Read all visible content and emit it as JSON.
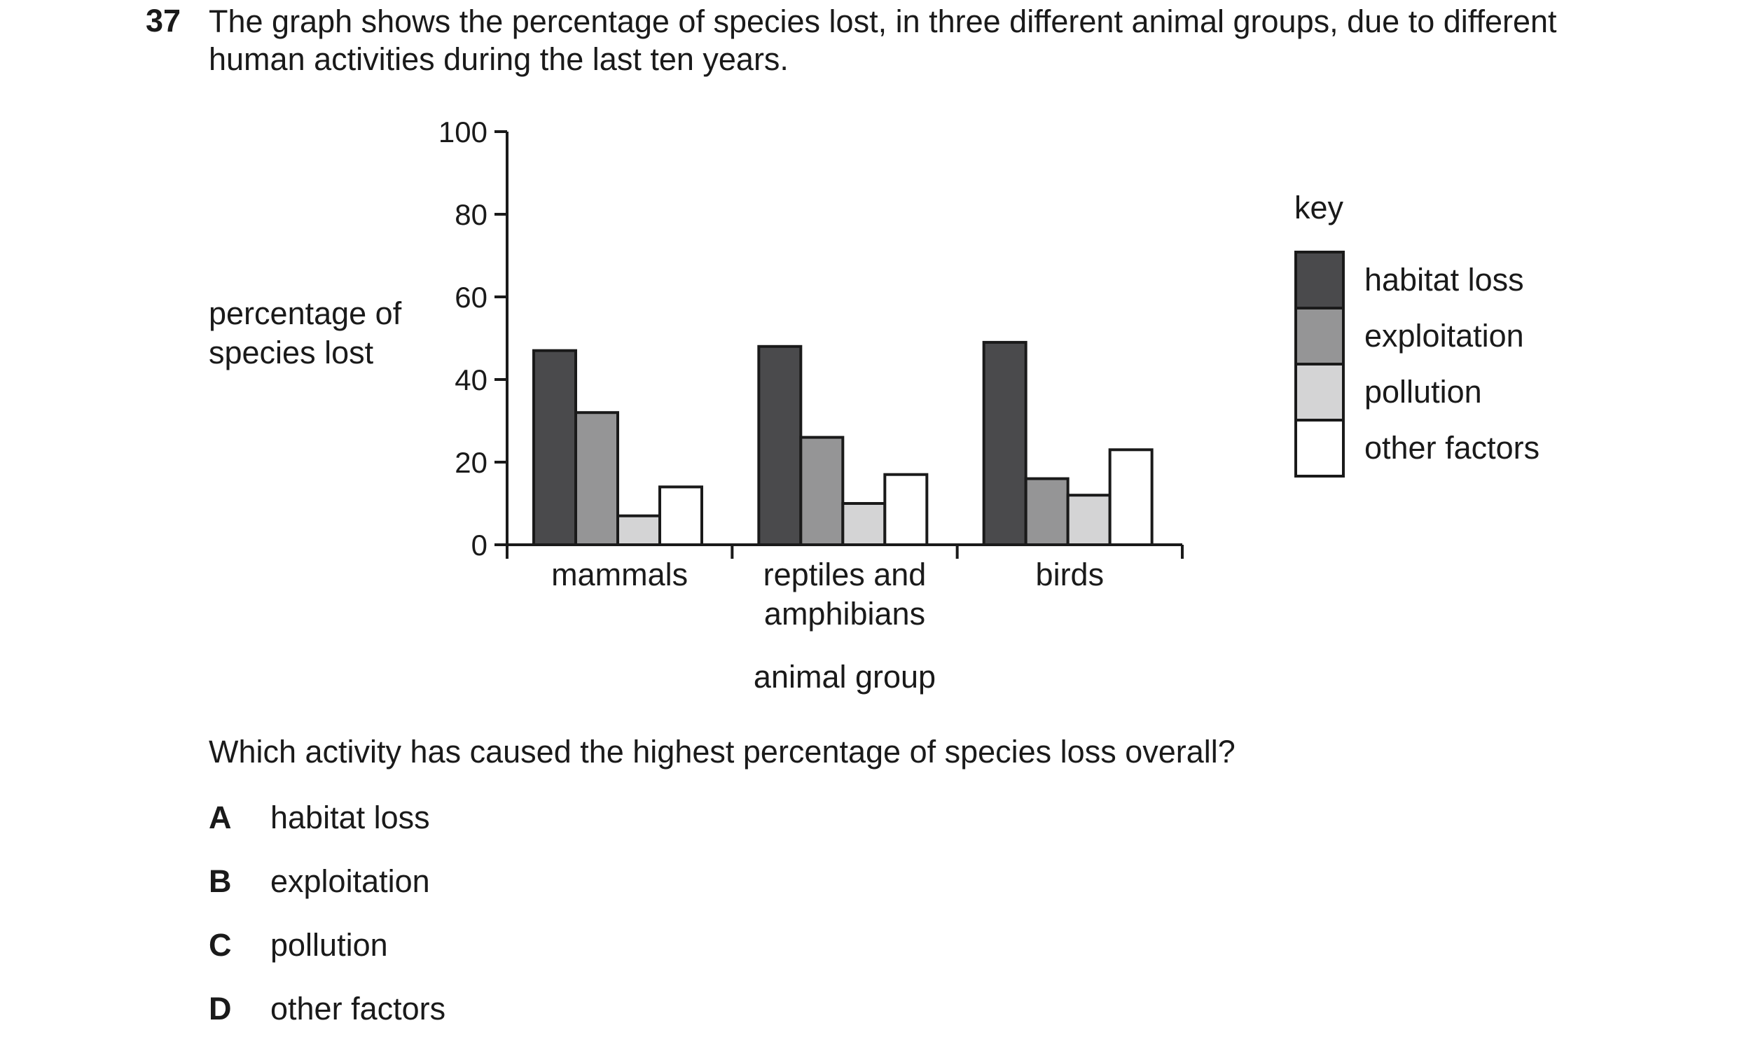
{
  "question": {
    "number": "37",
    "text_line1": "The graph shows the percentage of species lost, in three different animal groups, due to different",
    "text_line2": "human activities during the last ten years.",
    "prompt": "Which activity has caused the highest percentage of species loss overall?",
    "options": [
      {
        "letter": "A",
        "text": "habitat loss"
      },
      {
        "letter": "B",
        "text": "exploitation"
      },
      {
        "letter": "C",
        "text": "pollution"
      },
      {
        "letter": "D",
        "text": "other factors"
      }
    ]
  },
  "chart_data": {
    "type": "bar",
    "title": "",
    "ylabel_lines": [
      "percentage of",
      "species lost"
    ],
    "xlabel": "animal group",
    "ylim": [
      0,
      100
    ],
    "yticks": [
      0,
      20,
      40,
      60,
      80,
      100
    ],
    "categories": [
      {
        "lines": [
          "mammals"
        ]
      },
      {
        "lines": [
          "reptiles and",
          "amphibians"
        ]
      },
      {
        "lines": [
          "birds"
        ]
      }
    ],
    "legend_title": "key",
    "legend_position": "right",
    "grid": false,
    "series": [
      {
        "name": "habitat loss",
        "color": "#4a4a4c",
        "values": [
          47,
          48,
          49
        ]
      },
      {
        "name": "exploitation",
        "color": "#959596",
        "values": [
          32,
          26,
          16
        ]
      },
      {
        "name": "pollution",
        "color": "#d4d4d5",
        "values": [
          7,
          10,
          12
        ]
      },
      {
        "name": "other factors",
        "color": "#ffffff",
        "values": [
          14,
          17,
          23
        ]
      }
    ]
  }
}
